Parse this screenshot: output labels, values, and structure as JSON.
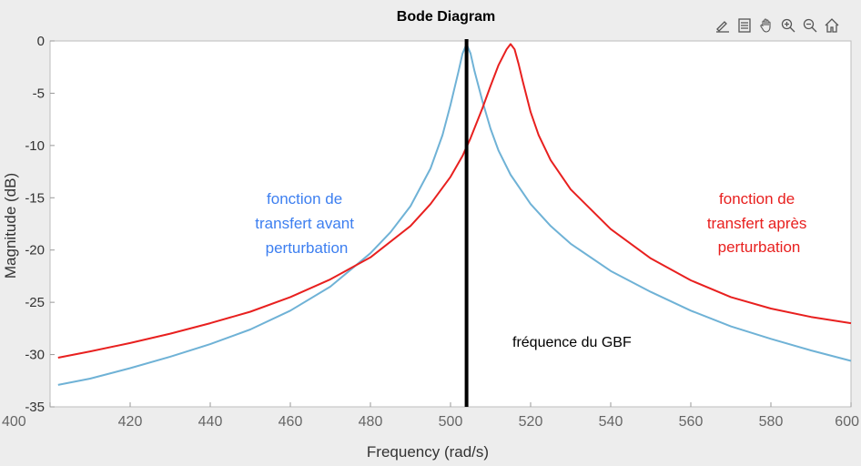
{
  "chart_data": {
    "type": "line",
    "title": "Bode Diagram",
    "xlabel": "Frequency  (rad/s)",
    "ylabel": "Magnitude (dB)",
    "xlim": [
      400,
      600
    ],
    "ylim": [
      -35,
      0
    ],
    "xticks": [
      400,
      420,
      440,
      460,
      480,
      500,
      520,
      540,
      560,
      580,
      600
    ],
    "yticks": [
      0,
      -5,
      -10,
      -15,
      -20,
      -25,
      -30,
      -35
    ],
    "grid": false,
    "series": [
      {
        "name": "fonction de transfert avant perturbation",
        "color": "#6fb2d6",
        "x": [
          402,
          410,
          420,
          430,
          440,
          450,
          460,
          470,
          480,
          485,
          490,
          495,
          498,
          500,
          502,
          503,
          504,
          505,
          506,
          508,
          510,
          512,
          515,
          520,
          525,
          530,
          540,
          550,
          560,
          570,
          580,
          590,
          600
        ],
        "y": [
          -32.9,
          -32.3,
          -31.3,
          -30.2,
          -29.0,
          -27.6,
          -25.8,
          -23.5,
          -20.3,
          -18.3,
          -15.8,
          -12.2,
          -9.0,
          -6.1,
          -2.9,
          -1.2,
          -0.3,
          -1.2,
          -2.9,
          -5.8,
          -8.4,
          -10.5,
          -12.8,
          -15.6,
          -17.7,
          -19.4,
          -22.0,
          -24.0,
          -25.8,
          -27.3,
          -28.5,
          -29.6,
          -30.6
        ]
      },
      {
        "name": "fonction de transfert après perturbation",
        "color": "#e8201f",
        "x": [
          402,
          410,
          420,
          430,
          440,
          450,
          460,
          470,
          480,
          490,
          495,
          500,
          503,
          505,
          508,
          510,
          512,
          514,
          515,
          516,
          517,
          518,
          520,
          522,
          525,
          530,
          540,
          550,
          560,
          570,
          580,
          590,
          600
        ],
        "y": [
          -30.3,
          -29.7,
          -28.9,
          -28.0,
          -27.0,
          -25.9,
          -24.5,
          -22.8,
          -20.7,
          -17.7,
          -15.6,
          -13.0,
          -11.0,
          -9.3,
          -6.4,
          -4.3,
          -2.3,
          -0.8,
          -0.3,
          -0.8,
          -2.2,
          -3.8,
          -6.8,
          -9.0,
          -11.4,
          -14.2,
          -18.0,
          -20.8,
          -22.9,
          -24.5,
          -25.6,
          -26.4,
          -27.0
        ]
      }
    ],
    "vline": {
      "x": 504,
      "color": "#000000"
    },
    "annotations": {
      "before": [
        "fonction de",
        "transfert avant",
        "perturbation"
      ],
      "after": [
        "fonction de",
        "transfert après",
        "perturbation"
      ],
      "gbf": "fréquence du GBF"
    }
  },
  "colors": {
    "before": "#3d7ff0",
    "after": "#e8201f",
    "plot_bg": "#ffffff",
    "page_bg": "#ededed"
  },
  "toolbar": {
    "icons": [
      "brush-icon",
      "legend-icon",
      "pan-icon",
      "zoom-in-icon",
      "zoom-out-icon",
      "home-icon"
    ]
  }
}
